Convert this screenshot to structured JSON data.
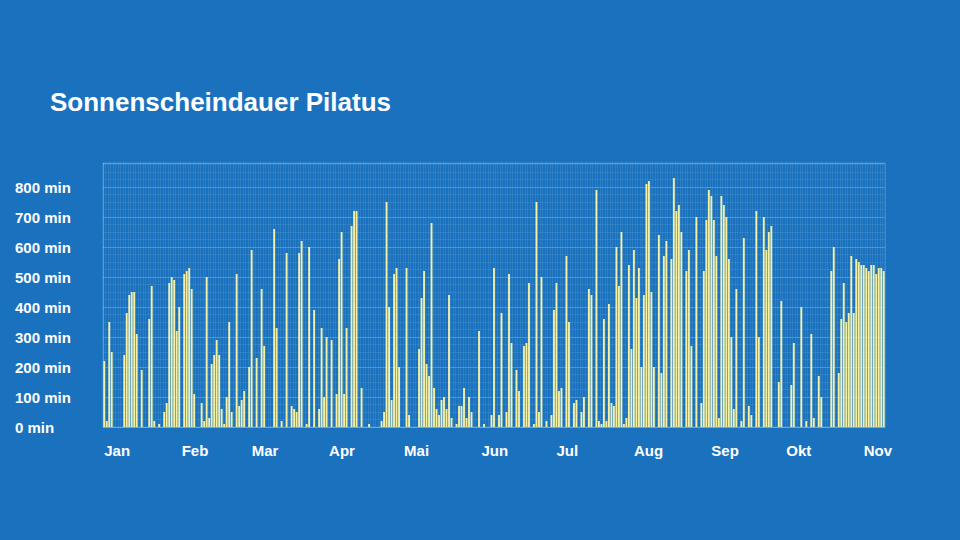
{
  "chart_data": {
    "type": "bar",
    "title": "Sonnenscheindauer Pilatus",
    "color": "#f4f0a6",
    "grid": true,
    "ylim": [
      0,
      880
    ],
    "yticks": [
      {
        "value": 0,
        "label": "0 min"
      },
      {
        "value": 100,
        "label": "100 min"
      },
      {
        "value": 200,
        "label": "200 min"
      },
      {
        "value": 300,
        "label": "300 min"
      },
      {
        "value": 400,
        "label": "400 min"
      },
      {
        "value": 500,
        "label": "500 min"
      },
      {
        "value": 600,
        "label": "600 min"
      },
      {
        "value": 700,
        "label": "700 min"
      },
      {
        "value": 800,
        "label": "800 min"
      }
    ],
    "categories": [
      "Jan",
      null,
      null,
      null,
      null,
      null,
      null,
      null,
      null,
      null,
      null,
      null,
      null,
      null,
      null,
      null,
      null,
      null,
      null,
      null,
      null,
      null,
      null,
      null,
      null,
      null,
      null,
      null,
      null,
      null,
      null,
      "Feb",
      null,
      null,
      null,
      null,
      null,
      null,
      null,
      null,
      null,
      null,
      null,
      null,
      null,
      null,
      null,
      null,
      null,
      null,
      null,
      null,
      null,
      null,
      null,
      null,
      null,
      null,
      null,
      "Mar",
      null,
      null,
      null,
      null,
      null,
      null,
      null,
      null,
      null,
      null,
      null,
      null,
      null,
      null,
      null,
      null,
      null,
      null,
      null,
      null,
      null,
      null,
      null,
      null,
      null,
      null,
      null,
      null,
      null,
      null,
      "Apr",
      null,
      null,
      null,
      null,
      null,
      null,
      null,
      null,
      null,
      null,
      null,
      null,
      null,
      null,
      null,
      null,
      null,
      null,
      null,
      null,
      null,
      null,
      null,
      null,
      null,
      null,
      null,
      null,
      null,
      "Mai",
      null,
      null,
      null,
      null,
      null,
      null,
      null,
      null,
      null,
      null,
      null,
      null,
      null,
      null,
      null,
      null,
      null,
      null,
      null,
      null,
      null,
      null,
      null,
      null,
      null,
      null,
      null,
      null,
      null,
      null,
      "Jun",
      null,
      null,
      null,
      null,
      null,
      null,
      null,
      null,
      null,
      null,
      null,
      null,
      null,
      null,
      null,
      null,
      null,
      null,
      null,
      null,
      null,
      null,
      null,
      null,
      null,
      null,
      null,
      null,
      null,
      "Jul",
      null,
      null,
      null,
      null,
      null,
      null,
      null,
      null,
      null,
      null,
      null,
      null,
      null,
      null,
      null,
      null,
      null,
      null,
      null,
      null,
      null,
      null,
      null,
      null,
      null,
      null,
      null,
      null,
      null,
      null,
      "Aug",
      null,
      null,
      null,
      null,
      null,
      null,
      null,
      null,
      null,
      null,
      null,
      null,
      null,
      null,
      null,
      null,
      null,
      null,
      null,
      null,
      null,
      null,
      null,
      null,
      null,
      null,
      null,
      null,
      null,
      null,
      "Sep",
      null,
      null,
      null,
      null,
      null,
      null,
      null,
      null,
      null,
      null,
      null,
      null,
      null,
      null,
      null,
      null,
      null,
      null,
      null,
      null,
      null,
      null,
      null,
      null,
      null,
      null,
      null,
      null,
      null,
      "Okt",
      null,
      null,
      null,
      null,
      null,
      null,
      null,
      null,
      null,
      null,
      null,
      null,
      null,
      null,
      null,
      null,
      null,
      null,
      null,
      null,
      null,
      null,
      null,
      null,
      null,
      null,
      null,
      null,
      null,
      null,
      "Nov",
      null,
      null,
      null,
      null,
      null,
      null,
      null,
      null
    ],
    "values": [
      220,
      20,
      350,
      250,
      0,
      0,
      0,
      0,
      240,
      380,
      440,
      450,
      450,
      310,
      0,
      190,
      0,
      0,
      360,
      470,
      20,
      0,
      10,
      0,
      50,
      80,
      480,
      500,
      490,
      320,
      400,
      0,
      510,
      520,
      530,
      460,
      110,
      0,
      0,
      80,
      20,
      500,
      30,
      210,
      240,
      290,
      240,
      60,
      10,
      100,
      350,
      50,
      0,
      510,
      70,
      90,
      120,
      0,
      200,
      590,
      0,
      230,
      0,
      460,
      270,
      0,
      0,
      0,
      660,
      330,
      0,
      20,
      0,
      580,
      0,
      70,
      60,
      50,
      580,
      620,
      0,
      10,
      600,
      0,
      390,
      0,
      60,
      330,
      100,
      300,
      0,
      290,
      0,
      110,
      560,
      650,
      110,
      330,
      0,
      670,
      720,
      720,
      0,
      130,
      0,
      0,
      10,
      0,
      0,
      0,
      0,
      20,
      50,
      750,
      400,
      90,
      510,
      530,
      200,
      0,
      0,
      530,
      40,
      0,
      0,
      0,
      260,
      430,
      520,
      210,
      170,
      680,
      130,
      60,
      40,
      90,
      100,
      60,
      440,
      30,
      0,
      10,
      70,
      70,
      130,
      30,
      100,
      50,
      0,
      0,
      320,
      0,
      10,
      0,
      0,
      40,
      530,
      0,
      40,
      380,
      0,
      50,
      510,
      280,
      0,
      190,
      120,
      0,
      270,
      280,
      480,
      0,
      10,
      750,
      50,
      500,
      0,
      20,
      0,
      40,
      390,
      480,
      120,
      130,
      0,
      570,
      350,
      0,
      80,
      90,
      0,
      50,
      100,
      0,
      460,
      440,
      0,
      790,
      20,
      10,
      360,
      20,
      410,
      80,
      70,
      600,
      470,
      650,
      10,
      30,
      540,
      260,
      590,
      430,
      530,
      200,
      440,
      810,
      820,
      450,
      200,
      0,
      640,
      180,
      570,
      620,
      0,
      560,
      830,
      720,
      740,
      650,
      0,
      520,
      590,
      270,
      0,
      700,
      0,
      80,
      520,
      690,
      790,
      770,
      690,
      570,
      30,
      770,
      740,
      700,
      560,
      300,
      60,
      460,
      0,
      20,
      630,
      0,
      70,
      40,
      0,
      720,
      300,
      0,
      700,
      590,
      650,
      670,
      0,
      0,
      150,
      420,
      0,
      0,
      0,
      140,
      280,
      0,
      0,
      400,
      0,
      20,
      0,
      310,
      30,
      0,
      170,
      100,
      0,
      0,
      0,
      520,
      600,
      0,
      180,
      360,
      480,
      350,
      380,
      570,
      380,
      560,
      550,
      540,
      540,
      530,
      520,
      540,
      540,
      510,
      530,
      530,
      520
    ]
  }
}
